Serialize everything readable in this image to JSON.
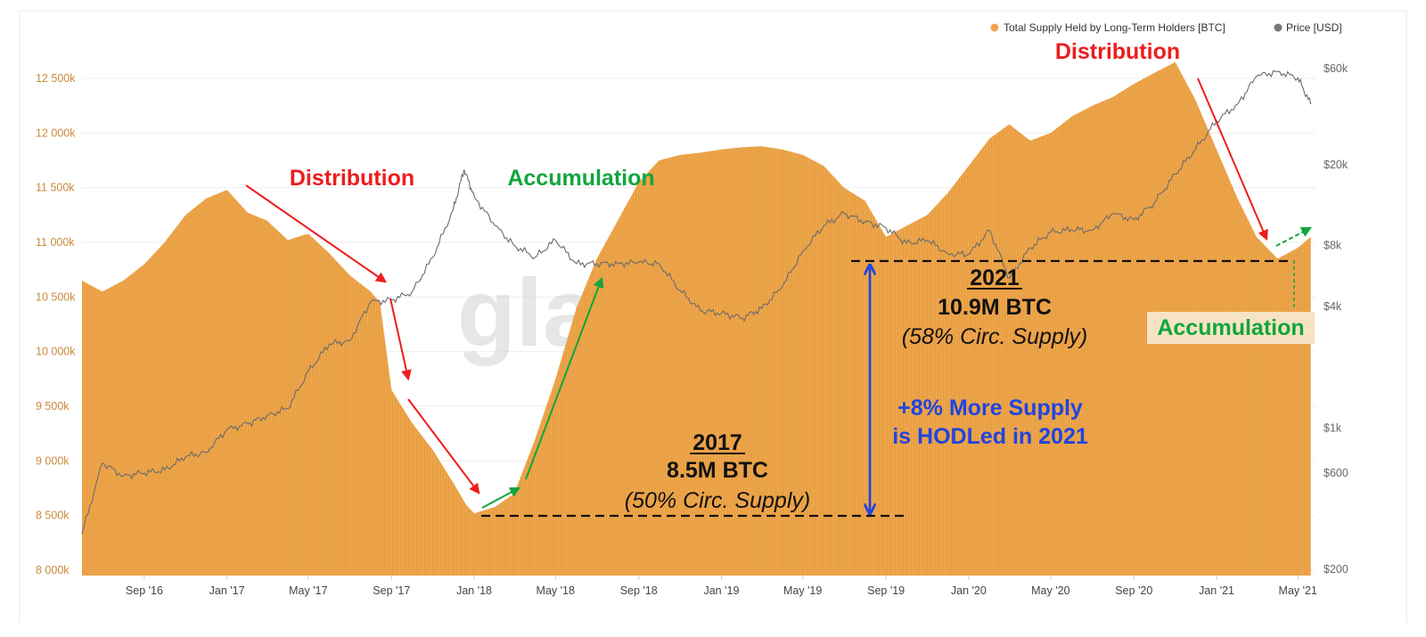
{
  "chart_data": {
    "type": "area",
    "legend": [
      {
        "name": "Total Supply Held by Long-Term Holders [BTC]",
        "color": "#eda54b"
      },
      {
        "name": "Price [USD]",
        "color": "#777777"
      }
    ],
    "legend_position": "top-right",
    "x_tick_labels": [
      "Sep '16",
      "Jan '17",
      "May '17",
      "Sep '17",
      "Jan '18",
      "May '18",
      "Sep '18",
      "Jan '19",
      "May '19",
      "Sep '19",
      "Jan '20",
      "May '20",
      "Sep '20",
      "Jan '21",
      "May '21"
    ],
    "left_axis": {
      "label": "Total Supply Held by Long-Term Holders [BTC]",
      "range": [
        8000000,
        12700000
      ],
      "ticks": [
        8000000,
        8500000,
        9000000,
        9500000,
        10000000,
        10500000,
        11000000,
        11500000,
        12000000,
        12500000
      ],
      "tick_labels": [
        "8 000k",
        "8 500k",
        "9 000k",
        "9 500k",
        "10 000k",
        "10 500k",
        "11 000k",
        "11 500k",
        "12 000k",
        "12 500k"
      ],
      "color": "#c98a3a"
    },
    "right_axis": {
      "label": "Price [USD]",
      "scale": "log",
      "range": [
        200,
        60000
      ],
      "ticks": [
        200,
        600,
        1000,
        4000,
        8000,
        20000,
        60000
      ],
      "tick_labels": [
        "$200",
        "$600",
        "$1k",
        "$4k",
        "$8k",
        "$20k",
        "$60k"
      ],
      "color": "#666666"
    },
    "series": [
      {
        "name": "Total Supply Held by Long-Term Holders [BTC]",
        "axis": "left",
        "dates": [
          "2016-06-01",
          "2016-07-01",
          "2016-08-01",
          "2016-09-01",
          "2016-10-01",
          "2016-11-01",
          "2016-12-01",
          "2017-01-01",
          "2017-02-01",
          "2017-03-01",
          "2017-04-01",
          "2017-05-01",
          "2017-06-01",
          "2017-07-01",
          "2017-08-01",
          "2017-08-15",
          "2017-09-01",
          "2017-10-01",
          "2017-11-01",
          "2017-12-01",
          "2017-12-20",
          "2018-01-01",
          "2018-02-01",
          "2018-03-01",
          "2018-04-01",
          "2018-05-01",
          "2018-06-01",
          "2018-07-01",
          "2018-08-01",
          "2018-09-01",
          "2018-10-01",
          "2018-11-01",
          "2018-12-01",
          "2019-01-01",
          "2019-02-01",
          "2019-03-01",
          "2019-04-01",
          "2019-05-01",
          "2019-06-01",
          "2019-07-01",
          "2019-08-01",
          "2019-09-01",
          "2019-10-01",
          "2019-11-01",
          "2019-12-01",
          "2020-01-01",
          "2020-02-01",
          "2020-03-01",
          "2020-04-01",
          "2020-05-01",
          "2020-06-01",
          "2020-07-01",
          "2020-08-01",
          "2020-09-01",
          "2020-10-01",
          "2020-11-01",
          "2020-12-01",
          "2021-01-01",
          "2021-02-01",
          "2021-03-01",
          "2021-04-01",
          "2021-05-01",
          "2021-05-20"
        ],
        "values": [
          10650000,
          10550000,
          10650000,
          10800000,
          11000000,
          11250000,
          11400000,
          11480000,
          11270000,
          11200000,
          11020000,
          11080000,
          10900000,
          10700000,
          10550000,
          10450000,
          9650000,
          9350000,
          9100000,
          8800000,
          8600000,
          8520000,
          8580000,
          8700000,
          9200000,
          9750000,
          10400000,
          10850000,
          11200000,
          11550000,
          11750000,
          11800000,
          11820000,
          11850000,
          11870000,
          11880000,
          11850000,
          11800000,
          11700000,
          11500000,
          11380000,
          11050000,
          11150000,
          11250000,
          11450000,
          11700000,
          11950000,
          12080000,
          11930000,
          12000000,
          12150000,
          12250000,
          12330000,
          12450000,
          12550000,
          12650000,
          12300000,
          11850000,
          11400000,
          11050000,
          10850000,
          10950000,
          11050000
        ]
      },
      {
        "name": "Price [USD]",
        "axis": "right",
        "dates": [
          "2016-06-01",
          "2016-07-01",
          "2016-08-01",
          "2016-09-01",
          "2016-10-01",
          "2016-11-01",
          "2016-12-01",
          "2017-01-01",
          "2017-02-01",
          "2017-03-01",
          "2017-04-01",
          "2017-05-01",
          "2017-06-01",
          "2017-07-01",
          "2017-08-01",
          "2017-09-01",
          "2017-10-01",
          "2017-11-01",
          "2017-12-01",
          "2017-12-17",
          "2018-01-01",
          "2018-02-01",
          "2018-03-01",
          "2018-04-01",
          "2018-05-01",
          "2018-06-01",
          "2018-07-01",
          "2018-08-01",
          "2018-09-01",
          "2018-10-01",
          "2018-11-01",
          "2018-12-01",
          "2019-01-01",
          "2019-02-01",
          "2019-03-01",
          "2019-04-01",
          "2019-05-01",
          "2019-06-01",
          "2019-07-01",
          "2019-08-01",
          "2019-09-01",
          "2019-10-01",
          "2019-11-01",
          "2019-12-01",
          "2020-01-01",
          "2020-02-01",
          "2020-03-01",
          "2020-04-01",
          "2020-05-01",
          "2020-06-01",
          "2020-07-01",
          "2020-08-01",
          "2020-09-01",
          "2020-10-01",
          "2020-11-01",
          "2020-12-01",
          "2021-01-01",
          "2021-02-01",
          "2021-03-01",
          "2021-04-01",
          "2021-05-01",
          "2021-05-20"
        ],
        "values": [
          300,
          670,
          580,
          600,
          620,
          720,
          760,
          980,
          1050,
          1150,
          1250,
          1900,
          2600,
          2700,
          4200,
          4300,
          4700,
          7000,
          12000,
          19000,
          14000,
          10000,
          8000,
          7000,
          8500,
          6500,
          6500,
          6500,
          6600,
          6500,
          4800,
          3800,
          3700,
          3500,
          3900,
          5000,
          7500,
          10000,
          11500,
          10500,
          9800,
          8200,
          8500,
          7300,
          7200,
          9500,
          5500,
          7800,
          9300,
          9600,
          9500,
          11500,
          10700,
          13000,
          18000,
          24000,
          33000,
          40000,
          55000,
          58000,
          54000,
          40000
        ]
      }
    ],
    "annotations": [
      {
        "text": "Distribution",
        "color": "#ee1c1c"
      },
      {
        "text": "Accumulation",
        "color": "#12a53c"
      },
      {
        "text": "Distribution",
        "color": "#ee1c1c"
      },
      {
        "text": "Accumulation",
        "color": "#12a53c"
      },
      {
        "text": "2017",
        "color": "#111111"
      },
      {
        "text": "8.5M BTC",
        "color": "#111111"
      },
      {
        "text": "(50% Circ. Supply)",
        "color": "#111111"
      },
      {
        "text": "2021",
        "color": "#111111"
      },
      {
        "text": "10.9M BTC",
        "color": "#111111"
      },
      {
        "text": "(58% Circ. Supply)",
        "color": "#111111"
      },
      {
        "text": "+8% More Supply",
        "color": "#2044e0"
      },
      {
        "text": "is HODLed in 2021",
        "color": "#2044e0"
      }
    ],
    "reference_levels": [
      {
        "label": "2017",
        "value": 8500000
      },
      {
        "label": "2021",
        "value": 10900000
      }
    ],
    "watermark": "glassnode"
  }
}
